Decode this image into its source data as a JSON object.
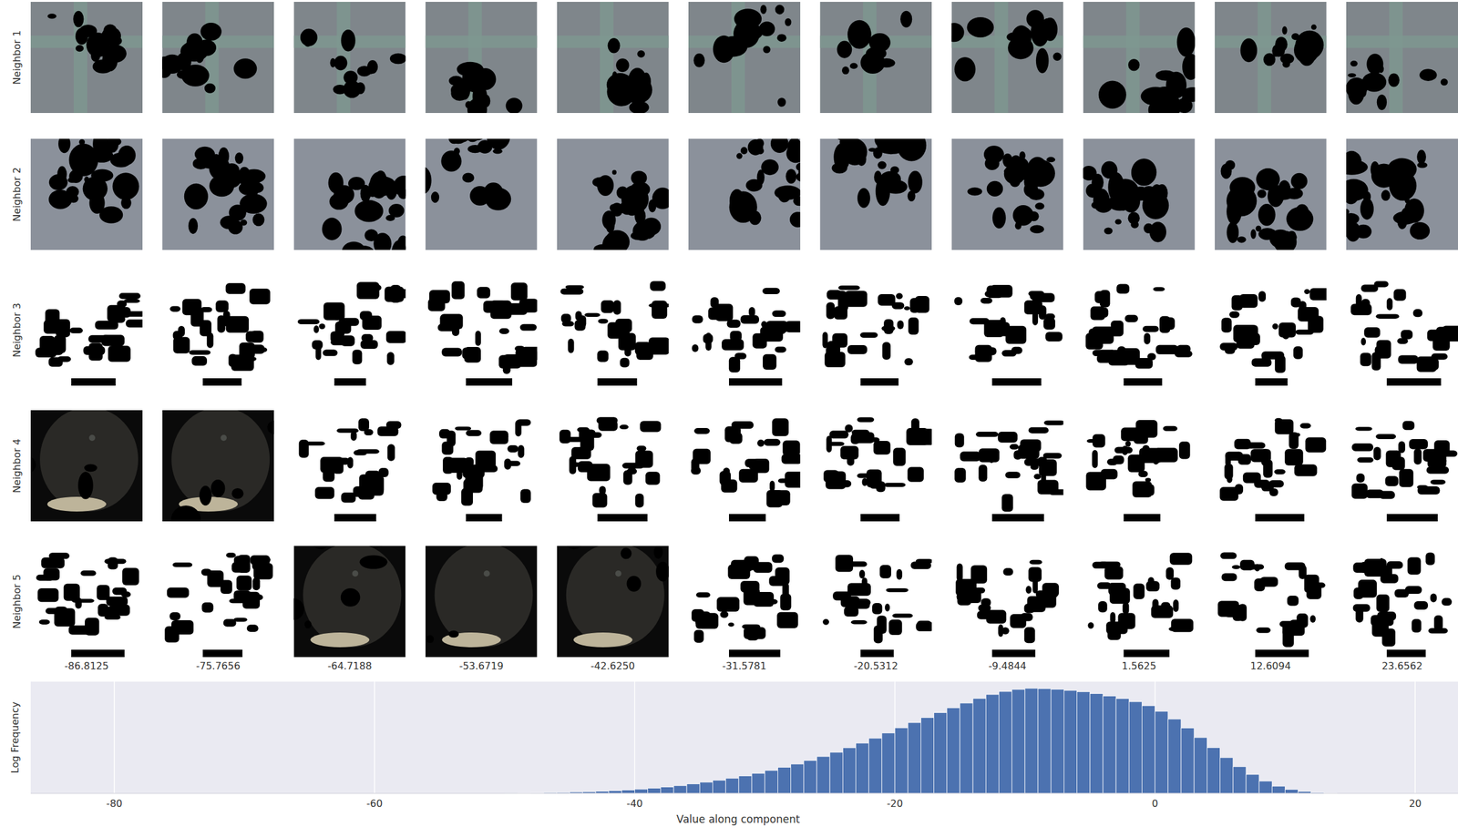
{
  "grid": {
    "row_labels": [
      "Neighbor 1",
      "Neighbor 2",
      "Neighbor 3",
      "Neighbor 4",
      "Neighbor 5"
    ],
    "column_labels": [
      "-86.8125",
      "-75.7656",
      "-64.7188",
      "-53.6719",
      "-42.6250",
      "-31.5781",
      "-20.5312",
      "-9.4844",
      "1.5625",
      "12.6094",
      "23.6562"
    ]
  },
  "chart_data": {
    "type": "histogram",
    "x_label": "Value along component",
    "y_label": "Log Frequency",
    "bins": [
      -50,
      -49,
      -48,
      -47,
      -46,
      -45,
      -44,
      -43,
      -42,
      -41,
      -40,
      -39,
      -38,
      -37,
      -36,
      -35,
      -34,
      -33,
      -32,
      -31,
      -30,
      -29,
      -28,
      -27,
      -26,
      -25,
      -24,
      -23,
      -22,
      -21,
      -20,
      -19,
      -18,
      -17,
      -16,
      -15,
      -14,
      -13,
      -12,
      -11,
      -10,
      -9,
      -8,
      -7,
      -6,
      -5,
      -4,
      -3,
      -2,
      -1,
      0,
      1,
      2,
      3,
      4,
      5,
      6,
      7,
      8,
      9,
      10,
      11,
      12,
      13,
      14
    ],
    "values": [
      0.002,
      0.003,
      0.005,
      0.007,
      0.009,
      0.012,
      0.015,
      0.019,
      0.024,
      0.03,
      0.038,
      0.047,
      0.057,
      0.07,
      0.085,
      0.1,
      0.117,
      0.136,
      0.157,
      0.18,
      0.205,
      0.233,
      0.263,
      0.295,
      0.33,
      0.368,
      0.408,
      0.45,
      0.494,
      0.54,
      0.587,
      0.633,
      0.678,
      0.722,
      0.765,
      0.808,
      0.85,
      0.885,
      0.912,
      0.93,
      0.94,
      0.938,
      0.932,
      0.922,
      0.91,
      0.893,
      0.872,
      0.848,
      0.82,
      0.785,
      0.735,
      0.665,
      0.585,
      0.5,
      0.41,
      0.32,
      0.24,
      0.17,
      0.11,
      0.065,
      0.035,
      0.017,
      0.008,
      0.003
    ],
    "color": "#4c72b0",
    "xlim": [
      -86.43,
      23.29
    ],
    "xticks": [
      -80,
      -60,
      -40,
      -20,
      0,
      20
    ],
    "ylim": [
      0,
      1
    ],
    "grid": true,
    "tick_labels": "x"
  }
}
